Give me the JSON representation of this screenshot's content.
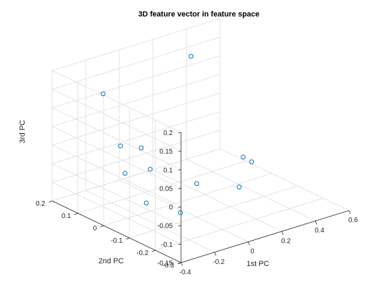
{
  "chart_data": {
    "type": "scatter",
    "title": "3D feature vector in feature space",
    "xlabel": "1st PC",
    "ylabel": "2nd PC",
    "zlabel": "3rd PC",
    "xlim": [
      -0.4,
      0.6
    ],
    "ylim": [
      -0.3,
      0.2
    ],
    "zlim": [
      -0.15,
      0.2
    ],
    "xticks": [
      "-0.4",
      "-0.2",
      "0",
      "0.2",
      "0.4",
      "0.6"
    ],
    "yticks": [
      "-0.3",
      "-0.2",
      "-0.1",
      "0",
      "0.1",
      "0.2"
    ],
    "zticks": [
      "-0.15",
      "-0.1",
      "-0.05",
      "0",
      "0.05",
      "0.1",
      "0.15",
      "0.2"
    ],
    "grid": true,
    "marker": "circle-open",
    "marker_color": "#0072bd",
    "points": [
      {
        "x": 0.35,
        "y": 0.15,
        "z": 0.15
      },
      {
        "x": -0.25,
        "y": 0.1,
        "z": 0.15
      },
      {
        "x": -0.3,
        "y": 0.0,
        "z": 0.05
      },
      {
        "x": -0.35,
        "y": -0.05,
        "z": 0.0
      },
      {
        "x": -0.1,
        "y": 0.05,
        "z": 0.0
      },
      {
        "x": -0.2,
        "y": -0.05,
        "z": -0.01
      },
      {
        "x": -0.3,
        "y": -0.1,
        "z": -0.07
      },
      {
        "x": -0.25,
        "y": -0.2,
        "z": -0.07
      },
      {
        "x": 0.0,
        "y": -0.1,
        "z": -0.06
      },
      {
        "x": 0.2,
        "y": -0.15,
        "z": 0.0
      },
      {
        "x": 0.25,
        "y": -0.15,
        "z": -0.02
      },
      {
        "x": 0.1,
        "y": -0.2,
        "z": -0.05
      }
    ]
  }
}
